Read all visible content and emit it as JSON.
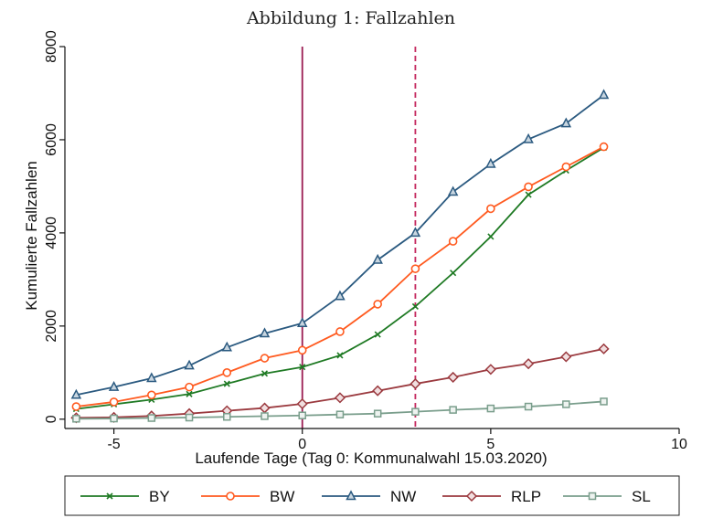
{
  "chart_data": {
    "type": "line",
    "title": "Abbildung 1: Fallzahlen",
    "xlabel": "Laufende Tage (Tag 0: Kommunalwahl 15.03.2020)",
    "ylabel": "Kumulierte Fallzahlen",
    "xlim": [
      -6.3,
      10
    ],
    "ylim": [
      -200,
      8000
    ],
    "x_ticks": [
      -5,
      0,
      5,
      10
    ],
    "x_tick_labels": [
      "-5",
      "0",
      "5",
      "10"
    ],
    "y_ticks": [
      0,
      2000,
      4000,
      6000,
      8000
    ],
    "y_tick_labels": [
      "0",
      "2000",
      "4000",
      "6000",
      "8000"
    ],
    "grid": false,
    "legend_position": "bottom",
    "reference_lines": [
      {
        "x": 0,
        "style": "solid",
        "color": "#9b1c52"
      },
      {
        "x": 3,
        "style": "dashed",
        "color": "#c4285e"
      }
    ],
    "x": [
      -6,
      -5,
      -4,
      -3,
      -2,
      -1,
      0,
      1,
      2,
      3,
      4,
      5,
      6,
      7,
      8
    ],
    "series": [
      {
        "name": "BY",
        "color": "#1f7a24",
        "marker": "x",
        "values": [
          220,
          320,
          420,
          540,
          760,
          980,
          1120,
          1370,
          1820,
          2420,
          3140,
          3920,
          4820,
          5340,
          5830
        ]
      },
      {
        "name": "BW",
        "color": "#ff5a1f",
        "marker": "circle",
        "values": [
          270,
          370,
          520,
          690,
          1000,
          1310,
          1480,
          1880,
          2470,
          3230,
          3820,
          4520,
          4990,
          5420,
          5850
        ]
      },
      {
        "name": "NW",
        "color": "#2b5a80",
        "marker": "triangle",
        "values": [
          520,
          690,
          880,
          1150,
          1540,
          1840,
          2060,
          2640,
          3420,
          4000,
          4880,
          5480,
          6010,
          6350,
          6960
        ]
      },
      {
        "name": "RLP",
        "color": "#9b3a3f",
        "marker": "diamond",
        "values": [
          30,
          40,
          70,
          120,
          180,
          240,
          330,
          460,
          610,
          760,
          900,
          1070,
          1190,
          1340,
          1510
        ]
      },
      {
        "name": "SL",
        "color": "#7a9e8c",
        "marker": "square",
        "values": [
          10,
          15,
          25,
          35,
          50,
          65,
          80,
          100,
          120,
          160,
          200,
          230,
          270,
          320,
          380
        ]
      }
    ]
  }
}
